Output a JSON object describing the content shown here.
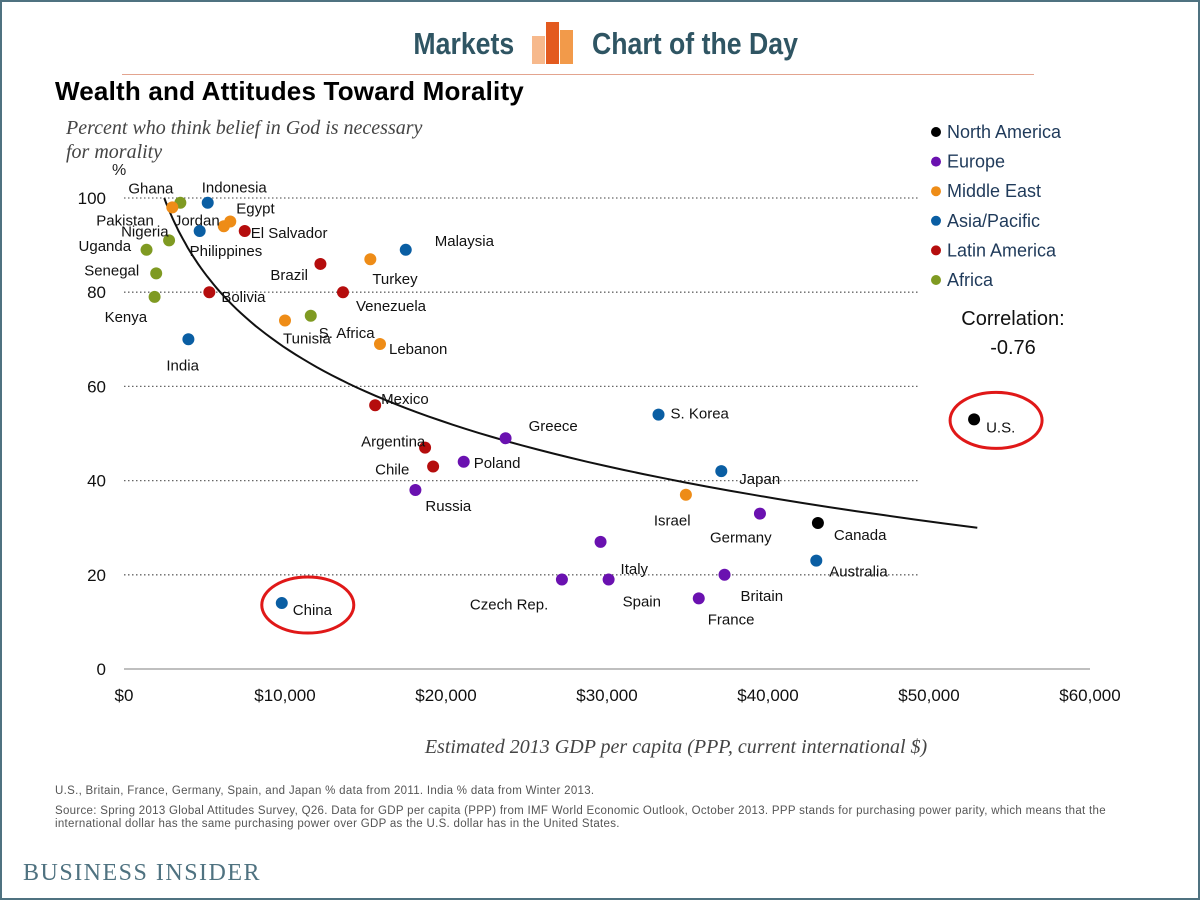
{
  "header": {
    "left_label": "Markets",
    "right_label": "Chart of the Day",
    "logo_colors": [
      "#f7b98c",
      "#e35a1f",
      "#f29a4a"
    ]
  },
  "footer": {
    "note": "U.S., Britain, France, Germany, Spain, and Japan % data from 2011. India % data from Winter 2013.",
    "source": "Source: Spring 2013 Global Attitudes Survey, Q26.  Data for GDP per capita (PPP) from IMF World Economic Outlook, October 2013. PPP stands for purchasing power parity, which means that the international dollar has the same purchasing power over GDP as the U.S. dollar has in the United States.",
    "brand": "BUSINESS INSIDER"
  },
  "chart_data": {
    "type": "scatter",
    "title": "Wealth and Attitudes Toward Morality",
    "subtitle": "Percent who think belief in God is necessary for morality",
    "xlabel": "Estimated 2013 GDP per capita (PPP, current international $)",
    "ylabel": "%",
    "xlim": [
      0,
      60000
    ],
    "ylim": [
      0,
      100
    ],
    "x_ticks": [
      0,
      10000,
      20000,
      30000,
      40000,
      50000,
      60000
    ],
    "x_tick_labels": [
      "$0",
      "$10,000",
      "$20,000",
      "$30,000",
      "$40,000",
      "$50,000",
      "$60,000"
    ],
    "y_ticks": [
      0,
      20,
      40,
      60,
      80,
      100
    ],
    "y_tick_labels": [
      "0",
      "20",
      "40",
      "60",
      "80",
      "100"
    ],
    "grid": "horizontal dotted",
    "legend_position": "top-right",
    "correlation_label": "Correlation:",
    "correlation_value": "-0.76",
    "regions": [
      {
        "name": "North America",
        "color": "#000000"
      },
      {
        "name": "Europe",
        "color": "#6a11b0"
      },
      {
        "name": "Middle East",
        "color": "#ee8c17"
      },
      {
        "name": "Asia/Pacific",
        "color": "#0a5ea3"
      },
      {
        "name": "Latin America",
        "color": "#b50d0d"
      },
      {
        "name": "Africa",
        "color": "#7f9a22"
      }
    ],
    "trend": {
      "type": "logarithmic",
      "from": [
        2500,
        100
      ],
      "to": [
        53000,
        30
      ]
    },
    "highlighted": [
      "U.S.",
      "China"
    ],
    "points": [
      {
        "label": "Ghana",
        "region": "Africa",
        "x": 3500,
        "y": 99
      },
      {
        "label": "Indonesia",
        "region": "Asia/Pacific",
        "x": 5200,
        "y": 99
      },
      {
        "label": "Pakistan",
        "region": "Middle East",
        "x": 3000,
        "y": 98
      },
      {
        "label": "Egypt",
        "region": "Middle East",
        "x": 6600,
        "y": 95
      },
      {
        "label": "Jordan",
        "region": "Middle East",
        "x": 6200,
        "y": 94
      },
      {
        "label": "Nigeria",
        "region": "Africa",
        "x": 2800,
        "y": 91
      },
      {
        "label": "Philippines",
        "region": "Asia/Pacific",
        "x": 4700,
        "y": 93
      },
      {
        "label": "El Salvador",
        "region": "Latin America",
        "x": 7500,
        "y": 93
      },
      {
        "label": "Uganda",
        "region": "Africa",
        "x": 1400,
        "y": 89
      },
      {
        "label": "Malaysia",
        "region": "Asia/Pacific",
        "x": 17500,
        "y": 89
      },
      {
        "label": "Senegal",
        "region": "Africa",
        "x": 2000,
        "y": 84
      },
      {
        "label": "Brazil",
        "region": "Latin America",
        "x": 12200,
        "y": 86
      },
      {
        "label": "Turkey",
        "region": "Middle East",
        "x": 15300,
        "y": 87
      },
      {
        "label": "Bolivia",
        "region": "Latin America",
        "x": 5300,
        "y": 80
      },
      {
        "label": "Kenya",
        "region": "Africa",
        "x": 1900,
        "y": 79
      },
      {
        "label": "Venezuela",
        "region": "Latin America",
        "x": 13600,
        "y": 80
      },
      {
        "label": "S. Africa",
        "region": "Africa",
        "x": 11600,
        "y": 75
      },
      {
        "label": "Tunisia",
        "region": "Middle East",
        "x": 10000,
        "y": 74
      },
      {
        "label": "India",
        "region": "Asia/Pacific",
        "x": 4000,
        "y": 70
      },
      {
        "label": "Lebanon",
        "region": "Middle East",
        "x": 15900,
        "y": 69
      },
      {
        "label": "Mexico",
        "region": "Latin America",
        "x": 15600,
        "y": 56
      },
      {
        "label": "S. Korea",
        "region": "Asia/Pacific",
        "x": 33200,
        "y": 54
      },
      {
        "label": "U.S.",
        "region": "North America",
        "x": 52800,
        "y": 53
      },
      {
        "label": "Greece",
        "region": "Europe",
        "x": 23700,
        "y": 49
      },
      {
        "label": "Argentina",
        "region": "Latin America",
        "x": 18700,
        "y": 47
      },
      {
        "label": "Poland",
        "region": "Europe",
        "x": 21100,
        "y": 44
      },
      {
        "label": "Chile",
        "region": "Latin America",
        "x": 19200,
        "y": 43
      },
      {
        "label": "Japan",
        "region": "Asia/Pacific",
        "x": 37100,
        "y": 42
      },
      {
        "label": "Russia",
        "region": "Europe",
        "x": 18100,
        "y": 38
      },
      {
        "label": "Israel",
        "region": "Middle East",
        "x": 34900,
        "y": 37
      },
      {
        "label": "Germany",
        "region": "Europe",
        "x": 39500,
        "y": 33
      },
      {
        "label": "Canada",
        "region": "North America",
        "x": 43100,
        "y": 31
      },
      {
        "label": "Italy",
        "region": "Europe",
        "x": 29600,
        "y": 27
      },
      {
        "label": "Australia",
        "region": "Asia/Pacific",
        "x": 43000,
        "y": 23
      },
      {
        "label": "Britain",
        "region": "Europe",
        "x": 37300,
        "y": 20
      },
      {
        "label": "Czech Rep.",
        "region": "Europe",
        "x": 27200,
        "y": 19
      },
      {
        "label": "Spain",
        "region": "Europe",
        "x": 30100,
        "y": 19
      },
      {
        "label": "France",
        "region": "Europe",
        "x": 35700,
        "y": 15
      },
      {
        "label": "China",
        "region": "Asia/Pacific",
        "x": 9800,
        "y": 14
      }
    ]
  }
}
